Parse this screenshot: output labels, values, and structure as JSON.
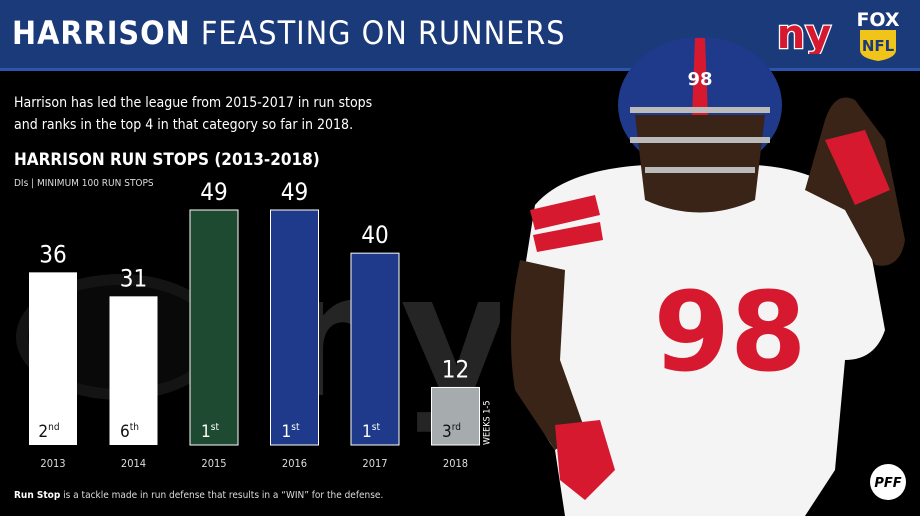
{
  "header": {
    "title_bold": "HARRISON",
    "title_light": "FEASTING ON RUNNERS"
  },
  "description": {
    "line1": "Harrison has led the league from 2015-2017 in run stops",
    "line2": "and ranks in the top 4 in that category so far in 2018."
  },
  "logos": {
    "team": "ny",
    "network_top": "FOX",
    "network_bottom": "NFL",
    "watermark": "PFF",
    "jersey_number": "98"
  },
  "footnote": {
    "term": "Run Stop",
    "text": " is a tackle made in run defense that results in a “WIN” for the defense."
  },
  "colors": {
    "header_bg": "#1b3a7a",
    "jets_green": "#1e4a32",
    "giants_blue": "#1f3a8a",
    "giants_red": "#d6192f",
    "bar_white": "#ffffff",
    "bar_gray": "#a6acae"
  },
  "chart_data": {
    "type": "bar",
    "title": "HARRISON RUN STOPS (2013-2018)",
    "subtitle": "DIs | MINIMUM 100 RUN STOPS",
    "categories": [
      "2013",
      "2014",
      "2015",
      "2016",
      "2017",
      "2018"
    ],
    "values": [
      36,
      31,
      49,
      49,
      40,
      12
    ],
    "ranks": [
      "2nd",
      "6th",
      "1st",
      "1st",
      "1st",
      "3rd"
    ],
    "bar_colors": [
      "#ffffff",
      "#ffffff",
      "#1e4a32",
      "#1f3a8a",
      "#1f3a8a",
      "#a6acae"
    ],
    "annotation": "WEEKS 1-5",
    "ylim": [
      0,
      49
    ],
    "grid": false,
    "legend": "none"
  }
}
